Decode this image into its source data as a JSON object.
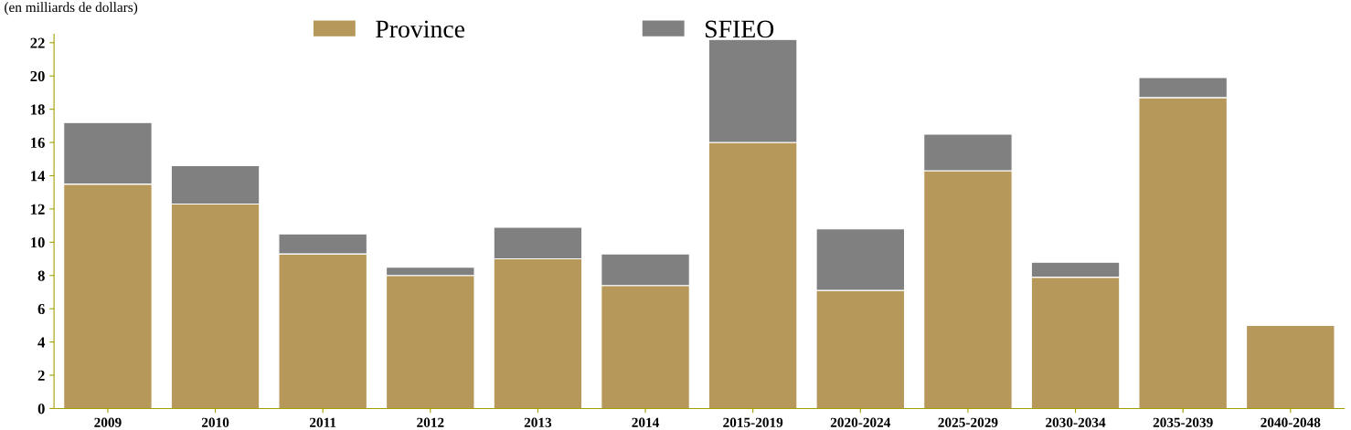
{
  "chart_data": {
    "type": "bar",
    "stacked": true,
    "ylabel": "(en milliards de dollars)",
    "categories": [
      "2009",
      "2010",
      "2011",
      "2012",
      "2013",
      "2014",
      "2015-2019",
      "2020-2024",
      "2025-2029",
      "2030-2034",
      "2035-2039",
      "2040-2048"
    ],
    "series": [
      {
        "name": "Province",
        "color": "#b5985a",
        "values": [
          13.5,
          12.3,
          9.3,
          8.0,
          9.0,
          7.4,
          16.0,
          7.1,
          14.3,
          7.9,
          18.7,
          5.0
        ]
      },
      {
        "name": "SFIEO",
        "color": "#808080",
        "values": [
          3.7,
          2.3,
          1.2,
          0.5,
          1.9,
          1.9,
          6.2,
          3.7,
          2.2,
          0.9,
          1.2,
          null
        ]
      }
    ],
    "ylim": [
      0,
      22.5
    ],
    "yticks": [
      0,
      2,
      4,
      6,
      8,
      10,
      12,
      14,
      16,
      18,
      20,
      22
    ],
    "grid": false,
    "legend": "top"
  }
}
